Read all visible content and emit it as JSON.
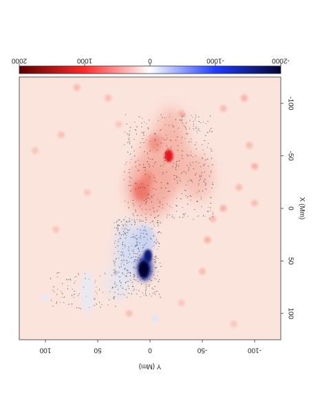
{
  "chart_data": {
    "type": "heatmap",
    "orientation": "rotated-90-clockwise",
    "xlabel": "X (Mm)",
    "ylabel": "Y (Mm)",
    "xlim": [
      -125,
      125
    ],
    "ylim": [
      -125,
      125
    ],
    "x_ticks": [
      "-100",
      "-50",
      "0",
      "50",
      "100"
    ],
    "y_ticks": [
      "100",
      "50",
      "0",
      "-50",
      "-100"
    ],
    "colorbar": {
      "range": [
        2000,
        -2000
      ],
      "ticks": [
        "2000",
        "1000",
        "0",
        "-1000",
        "-2000"
      ],
      "colors": [
        "#5a0000",
        "#ff2a2a",
        "#ffffff",
        "#1f3cff",
        "#05052e"
      ]
    },
    "background_color": "#fbe4dc",
    "features": [
      {
        "kind": "negative-spot",
        "x": 58,
        "y": 5,
        "peak": -2000,
        "color": "#05052e"
      },
      {
        "kind": "negative-plage",
        "x": 45,
        "y": 12,
        "peak": -700,
        "color": "#7e9ae8"
      },
      {
        "kind": "positive-spot",
        "x": -50,
        "y": -18,
        "peak": 1800,
        "color": "#e8161a"
      },
      {
        "kind": "positive-plage",
        "x": -18,
        "y": 5,
        "peak": 800,
        "color": "#f28a80"
      },
      {
        "kind": "positive-plage",
        "x": -60,
        "y": -8,
        "peak": 600,
        "color": "#f4a89c"
      },
      {
        "kind": "positive-plage",
        "x": -40,
        "y": -40,
        "peak": 500,
        "color": "#f4a89c"
      }
    ]
  }
}
